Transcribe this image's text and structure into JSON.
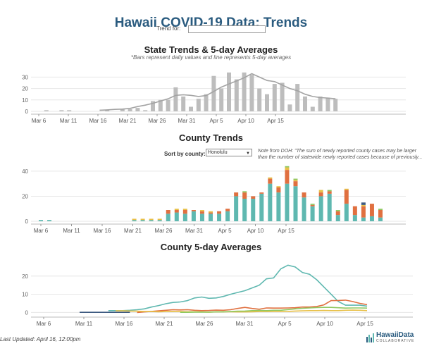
{
  "page": {
    "title": "Hawaii COVID-19 Data: Trends",
    "trend_label": "Trend for:",
    "last_updated": "Last Updated: April 16, 12:00pm",
    "logo_name": "HawaiiData",
    "logo_sub": "COLLABORATIVE"
  },
  "county_controls": {
    "sort_label": "Sort by county:",
    "selected": "Honolulu",
    "note_line1": "Note from DOH: \"The sum of newly reported county cases may be larger",
    "note_line2": "than the number of statewide newly reported cases because of previously..."
  },
  "colors": {
    "state_bar": "#bdbdbd",
    "state_line": "#a3a3a3",
    "honolulu": "#5fb8b0",
    "maui": "#e07040",
    "hawaii": "#e8c048",
    "kauai": "#8fc860",
    "other": "#3d5a80"
  },
  "chart_data": [
    {
      "type": "bar",
      "title": "State Trends & 5-day Averages",
      "subtitle": "*Bars represent daily values and line represents 5-day averages",
      "xlabel": "",
      "ylabel": "",
      "x_ticks": [
        "Mar 6",
        "Mar 11",
        "Mar 16",
        "Mar 21",
        "Mar 26",
        "Mar 31",
        "Apr 5",
        "Apr 10",
        "Apr 15"
      ],
      "y_ticks": [
        0,
        10,
        20,
        30
      ],
      "ylim": [
        0,
        37
      ],
      "grid": true,
      "series": [
        {
          "values": [
            0,
            1,
            0,
            1,
            1,
            0,
            0,
            0,
            0,
            1,
            0,
            2,
            2,
            3,
            1,
            9,
            10,
            10,
            21,
            13,
            4,
            11,
            15,
            31,
            20,
            34,
            28,
            34,
            32,
            20,
            15,
            24,
            25,
            6,
            24,
            13,
            4,
            13,
            12,
            11
          ]
        },
        {
          "kind": "line",
          "values": [
            null,
            null,
            null,
            null,
            null,
            null,
            null,
            null,
            1,
            1.3,
            1.7,
            2,
            2.6,
            4.2,
            5.4,
            7,
            9,
            11,
            14,
            14.5,
            14,
            13,
            13.8,
            17.4,
            21.2,
            24,
            26.6,
            29.4,
            33,
            30,
            27,
            26,
            23,
            20,
            18,
            15,
            13,
            12,
            11.6,
            11
          ]
        }
      ]
    },
    {
      "type": "bar",
      "stacked": true,
      "title": "County Trends",
      "xlabel": "",
      "ylabel": "",
      "x_ticks": [
        "Mar 6",
        "Mar 11",
        "Mar 16",
        "Mar 21",
        "Mar 26",
        "Mar 31",
        "Apr 5",
        "Apr 10",
        "Apr 15"
      ],
      "y_ticks": [
        0,
        20,
        40
      ],
      "ylim": [
        0,
        45
      ],
      "grid": true,
      "series": [
        {
          "key": "honolulu",
          "values": [
            1,
            1,
            0,
            0,
            0,
            0,
            0,
            0,
            0,
            0,
            0,
            1,
            1,
            1,
            1,
            6,
            7,
            6,
            8,
            6,
            6,
            6,
            8,
            20,
            18,
            18,
            22,
            30,
            23,
            30,
            28,
            19,
            12,
            20,
            22,
            5,
            14,
            5,
            3,
            4,
            3
          ]
        },
        {
          "key": "maui",
          "values": [
            0,
            0,
            0,
            0,
            0,
            0,
            0,
            0,
            0,
            0,
            0,
            0,
            0,
            0,
            0,
            3,
            2,
            3,
            1,
            2,
            1,
            2,
            2,
            3,
            5,
            2,
            1,
            4,
            4,
            11,
            4,
            4,
            1,
            3,
            2,
            3,
            11,
            7,
            9,
            10,
            6
          ]
        },
        {
          "key": "hawaii",
          "values": [
            0,
            0,
            0,
            0,
            0,
            0,
            0,
            0,
            0,
            0,
            0,
            1,
            1,
            1,
            1,
            0,
            1,
            1,
            0,
            1,
            1,
            0,
            0,
            0,
            0,
            0,
            0,
            1,
            1,
            2,
            1,
            0,
            0,
            2,
            0,
            0,
            1,
            0,
            1,
            0,
            0
          ]
        },
        {
          "key": "kauai",
          "values": [
            0,
            0,
            0,
            0,
            0,
            0,
            0,
            0,
            0,
            0,
            0,
            0,
            0,
            0,
            0,
            0,
            0,
            0,
            0,
            0,
            0,
            0,
            0,
            0,
            1,
            0,
            0,
            0,
            0,
            1,
            1,
            0,
            1,
            0,
            1,
            1,
            0,
            0,
            0,
            0,
            1
          ]
        },
        {
          "key": "other",
          "values": [
            0,
            0,
            0,
            0,
            0,
            0,
            0,
            0,
            0,
            0,
            0,
            0,
            0,
            0,
            0,
            0,
            0,
            0,
            0,
            0,
            0,
            0,
            0,
            0,
            0,
            0,
            0,
            0,
            0,
            0,
            0,
            0,
            0,
            0,
            0,
            0,
            0,
            0,
            2,
            0,
            0
          ]
        }
      ]
    },
    {
      "type": "line",
      "title": "County 5-day Averages",
      "xlabel": "",
      "ylabel": "",
      "x_ticks": [
        "Mar 6",
        "Mar 11",
        "Mar 16",
        "Mar 21",
        "Mar 26",
        "Mar 31",
        "Apr 5",
        "Apr 10",
        "Apr 15"
      ],
      "y_ticks": [
        0,
        10,
        20
      ],
      "ylim": [
        -1,
        30
      ],
      "grid": true,
      "series": [
        {
          "key": "honolulu",
          "values": [
            null,
            null,
            null,
            null,
            null,
            null,
            null,
            null,
            null,
            1,
            1,
            1,
            1.2,
            1.5,
            2,
            3,
            3.8,
            4.8,
            5.5,
            5.8,
            6.5,
            8,
            8.5,
            7.8,
            8,
            8.8,
            10,
            11,
            12,
            13.5,
            15,
            18.5,
            19,
            24,
            26,
            25,
            22,
            21,
            18,
            14,
            10,
            6,
            4,
            4,
            4,
            3.5
          ]
        },
        {
          "key": "maui",
          "values": [
            null,
            null,
            null,
            null,
            null,
            null,
            null,
            null,
            null,
            null,
            null,
            null,
            null,
            0,
            0.3,
            0.6,
            0.9,
            1.2,
            1.5,
            1.4,
            1.5,
            1.2,
            1,
            1.1,
            1.3,
            1.2,
            1.5,
            2.2,
            2.8,
            2.2,
            1.8,
            2.5,
            2.4,
            2.4,
            2.5,
            2.6,
            3,
            3,
            3.3,
            4.2,
            6.5,
            6.6,
            6.8,
            6,
            5,
            4.3
          ]
        },
        {
          "key": "hawaii",
          "values": [
            null,
            null,
            null,
            null,
            null,
            null,
            null,
            null,
            null,
            null,
            0.9,
            0.9,
            0.8,
            0.7,
            0.6,
            0.5,
            0.4,
            0.5,
            0.6,
            0.5,
            0.4,
            0.4,
            0.3,
            0.2,
            0.3,
            0.4,
            0.4,
            0.3,
            0.3,
            0.4,
            0.5,
            0.5,
            0.5,
            0.5,
            0.6,
            0.8,
            0.9,
            1,
            1,
            1.1,
            1,
            1,
            1.2,
            1.3,
            1.2,
            1
          ]
        },
        {
          "key": "kauai",
          "values": [
            null,
            null,
            null,
            null,
            null,
            null,
            null,
            null,
            null,
            null,
            null,
            null,
            null,
            null,
            null,
            null,
            null,
            null,
            null,
            0.1,
            0.1,
            0.2,
            0.2,
            0.2,
            0.3,
            0.3,
            0.5,
            0.7,
            0.8,
            1,
            1.1,
            1,
            1.2,
            1.2,
            1.6,
            2,
            2.3,
            2.5,
            2.7,
            2.8,
            2.8,
            2.6,
            2.4,
            2.5,
            2.5,
            2.4
          ]
        },
        {
          "key": "other",
          "values": [
            null,
            null,
            null,
            null,
            null,
            0.1,
            0.1,
            0.1,
            0.1,
            0.1,
            0.1,
            0.1,
            0.1,
            null,
            null,
            null,
            null,
            null,
            null,
            null,
            null,
            null,
            null,
            null,
            null,
            null,
            null,
            null,
            null,
            null,
            null,
            null,
            null,
            null,
            null,
            null,
            null,
            null,
            null,
            null,
            null,
            null,
            null,
            null,
            null,
            null
          ]
        }
      ]
    }
  ]
}
